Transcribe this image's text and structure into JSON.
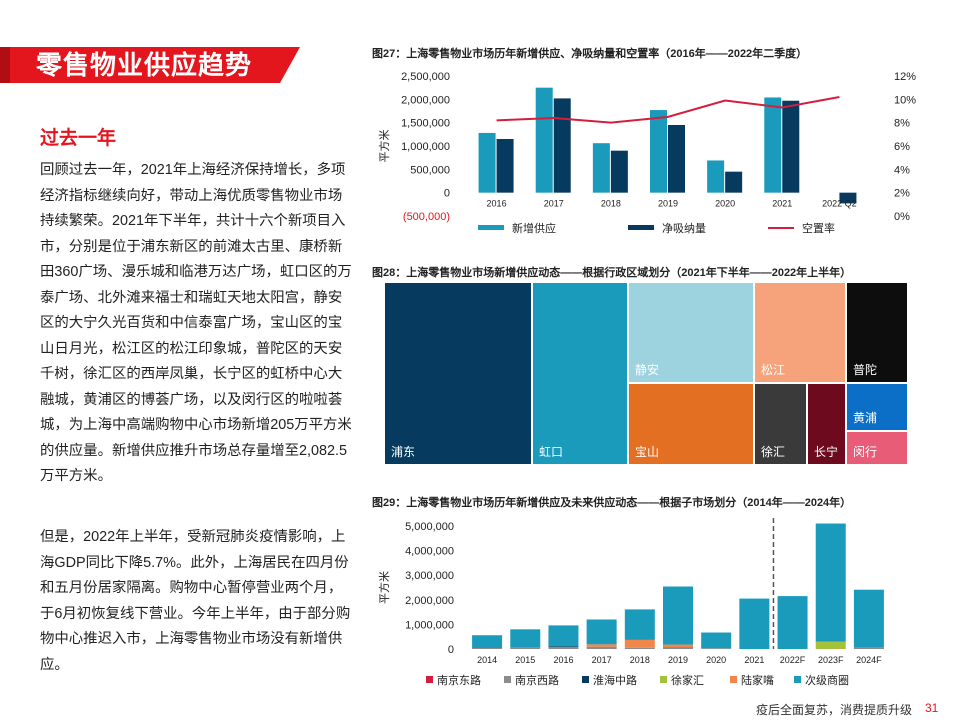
{
  "banner": {
    "title": "零售物业供应趋势",
    "color": "#e3161e"
  },
  "section": {
    "heading": "过去一年"
  },
  "paragraphs": [
    "回顾过去一年，2021年上海经济保持增长，多项经济指标继续向好，带动上海优质零售物业市场持续繁荣。2021年下半年，共计十六个新项目入市，分别是位于浦东新区的前滩太古里、康桥新田360广场、漫乐城和临港万达广场，虹口区的万泰广场、北外滩来福士和瑞虹天地太阳宫，静安区的大宁久光百货和中信泰富广场，宝山区的宝山日月光，松江区的松江印象城，普陀区的天安千树，徐汇区的西岸凤巢，长宁区的虹桥中心大融城，黄浦区的博荟广场，以及闵行区的啦啦荟城，为上海中高端购物中心市场新增205万平方米的供应量。新增供应推升市场总存量增至2,082.5万平方米。",
    "但是，2022年上半年，受新冠肺炎疫情影响，上海GDP同比下降5.7%。此外，上海居民在四月份和五月份居家隔离。购物中心暂停营业两个月，于6月初恢复线下营业。今年上半年，由于部分购物中心推迟入市，上海零售物业市场没有新增供应。"
  ],
  "figures": {
    "fig27": {
      "title": "图27：上海零售物业市场历年新增供应、净吸纳量和空置率（2016年——2022年二季度）"
    },
    "fig28": {
      "title": "图28：上海零售物业市场新增供应动态——根据行政区域划分（2021年下半年——2022年上半年）"
    },
    "fig29": {
      "title": "图29：上海零售物业市场历年新增供应及未来供应动态——根据子市场划分（2014年——2024年）"
    }
  },
  "chart_data": [
    {
      "type": "bar",
      "id": "fig27",
      "categories": [
        "2016",
        "2017",
        "2018",
        "2019",
        "2020",
        "2021",
        "2022 Q2"
      ],
      "series": [
        {
          "name": "新增供应",
          "kind": "bar",
          "color": "#1a9bbc",
          "values": [
            1280000,
            2250000,
            1060000,
            1770000,
            690000,
            2040000,
            0
          ]
        },
        {
          "name": "净吸纳量",
          "kind": "bar",
          "color": "#063a5e",
          "values": [
            1150000,
            2020000,
            900000,
            1450000,
            450000,
            1970000,
            -230000
          ]
        },
        {
          "name": "空置率",
          "kind": "line",
          "axis": "right",
          "color": "#d31f3c",
          "values": [
            8.2,
            8.4,
            8.0,
            8.5,
            9.9,
            9.3,
            10.2
          ]
        }
      ],
      "ylabel": "平方米",
      "ylim": [
        -500000,
        2500000
      ],
      "yticks": [
        "(500,000)",
        "0",
        "500,000",
        "1,000,000",
        "1,500,000",
        "2,000,000",
        "2,500,000"
      ],
      "y2lim": [
        0,
        12
      ],
      "y2ticks": [
        "0%",
        "2%",
        "4%",
        "6%",
        "8%",
        "10%",
        "12%"
      ],
      "legend": "bottom",
      "grid": false
    },
    {
      "type": "treemap",
      "id": "fig28",
      "cells": [
        {
          "name": "浦东",
          "color": "#063a5e"
        },
        {
          "name": "虹口",
          "color": "#1a9bbc"
        },
        {
          "name": "静安",
          "color": "#9dd3df"
        },
        {
          "name": "宝山",
          "color": "#e36f22"
        },
        {
          "name": "松江",
          "color": "#f6a37c"
        },
        {
          "name": "普陀",
          "color": "#0d0d0d"
        },
        {
          "name": "徐汇",
          "color": "#3a3a3a"
        },
        {
          "name": "长宁",
          "color": "#6d0a1e"
        },
        {
          "name": "黄浦",
          "color": "#0b6fc8"
        },
        {
          "name": "闵行",
          "color": "#e85c78"
        }
      ]
    },
    {
      "type": "bar",
      "stacked": true,
      "id": "fig29",
      "categories": [
        "2014",
        "2015",
        "2016",
        "2017",
        "2018",
        "2019",
        "2020",
        "2021",
        "2022F",
        "2023F",
        "2024F"
      ],
      "series": [
        {
          "name": "南京东路",
          "color": "#d31f3c",
          "values": [
            0,
            0,
            0,
            0,
            0,
            0,
            0,
            0,
            0,
            0,
            0
          ]
        },
        {
          "name": "南京西路",
          "color": "#8c8c8c",
          "values": [
            40000,
            80000,
            80000,
            90000,
            50000,
            80000,
            30000,
            0,
            0,
            0,
            80000
          ]
        },
        {
          "name": "淮海中路",
          "color": "#063a5e",
          "values": [
            0,
            0,
            30000,
            0,
            0,
            0,
            0,
            0,
            0,
            0,
            0
          ]
        },
        {
          "name": "徐家汇",
          "color": "#a3c13b",
          "values": [
            0,
            0,
            0,
            0,
            0,
            0,
            0,
            0,
            0,
            300000,
            0
          ]
        },
        {
          "name": "陆家嘴",
          "color": "#f0864a",
          "values": [
            0,
            0,
            0,
            100000,
            320000,
            100000,
            0,
            0,
            0,
            0,
            0
          ]
        },
        {
          "name": "次级商圈",
          "color": "#1a9bbc",
          "values": [
            520000,
            720000,
            850000,
            1010000,
            1240000,
            2360000,
            640000,
            2050000,
            2150000,
            4800000,
            2330000
          ]
        }
      ],
      "ylabel": "平方米",
      "ylim": [
        0,
        5000000
      ],
      "yticks": [
        "0",
        "1,000,000",
        "2,000,000",
        "3,000,000",
        "4,000,000",
        "5,000,000"
      ],
      "forecast_divider_after": "2021",
      "legend": "bottom",
      "grid": false
    }
  ],
  "footer": {
    "text": "疫后全面复苏，消费提质升级",
    "page": "31"
  }
}
